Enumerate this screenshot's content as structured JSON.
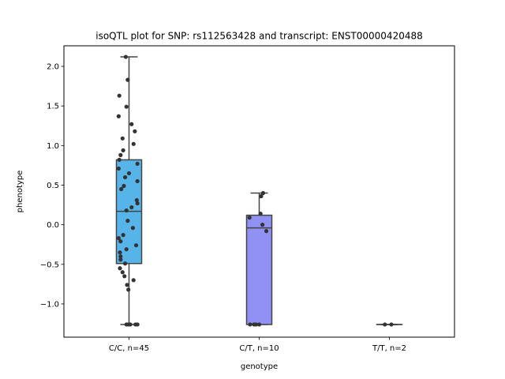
{
  "chart_data": {
    "type": "box",
    "title": "isoQTL plot for SNP: rs112563428 and transcript: ENST00000420488",
    "xlabel": "genotype",
    "ylabel": "phenotype",
    "ylim": [
      -1.42,
      2.26
    ],
    "yticks": [
      -1.0,
      -0.5,
      0.0,
      0.5,
      1.0,
      1.5,
      2.0
    ],
    "ytick_labels": [
      "−1.0",
      "−0.5",
      "0.0",
      "0.5",
      "1.0",
      "1.5",
      "2.0"
    ],
    "grid": false,
    "categories": [
      "C/C, n=45",
      "C/T, n=10",
      "T/T, n=2"
    ],
    "box_colors": [
      "#56b4e9",
      "#9191f4",
      "#b9a9f3"
    ],
    "point_color": "#333333",
    "boxes": [
      {
        "category": "C/C, n=45",
        "whisker_low": -1.26,
        "q1": -0.49,
        "median": 0.17,
        "q3": 0.82,
        "whisker_high": 2.12
      },
      {
        "category": "C/T, n=10",
        "whisker_low": -1.26,
        "q1": -1.26,
        "median": -0.04,
        "q3": 0.12,
        "whisker_high": 0.4
      },
      {
        "category": "T/T, n=2",
        "whisker_low": -1.26,
        "q1": -1.26,
        "median": -1.26,
        "q3": -1.26,
        "whisker_high": -1.26
      }
    ],
    "points": [
      [
        {
          "x": -0.05,
          "y": 2.12
        },
        {
          "x": -0.02,
          "y": 1.83
        },
        {
          "x": -0.15,
          "y": 1.63
        },
        {
          "x": -0.04,
          "y": 1.49
        },
        {
          "x": -0.16,
          "y": 1.37
        },
        {
          "x": 0.04,
          "y": 1.27
        },
        {
          "x": 0.09,
          "y": 1.18
        },
        {
          "x": -0.1,
          "y": 1.09
        },
        {
          "x": 0.07,
          "y": 1.02
        },
        {
          "x": -0.09,
          "y": 0.94
        },
        {
          "x": -0.13,
          "y": 0.88
        },
        {
          "x": -0.15,
          "y": 0.82
        },
        {
          "x": 0.13,
          "y": 0.77
        },
        {
          "x": -0.16,
          "y": 0.71
        },
        {
          "x": 0.0,
          "y": 0.65
        },
        {
          "x": -0.06,
          "y": 0.6
        },
        {
          "x": 0.13,
          "y": 0.55
        },
        {
          "x": -0.08,
          "y": 0.49
        },
        {
          "x": -0.12,
          "y": 0.45
        },
        {
          "x": 0.12,
          "y": 0.31
        },
        {
          "x": 0.13,
          "y": 0.27
        },
        {
          "x": 0.04,
          "y": 0.22
        },
        {
          "x": -0.04,
          "y": 0.18
        },
        {
          "x": -0.02,
          "y": 0.05
        },
        {
          "x": 0.06,
          "y": -0.04
        },
        {
          "x": -0.09,
          "y": -0.13
        },
        {
          "x": -0.16,
          "y": -0.17
        },
        {
          "x": -0.13,
          "y": -0.21
        },
        {
          "x": 0.11,
          "y": -0.26
        },
        {
          "x": -0.04,
          "y": -0.31
        },
        {
          "x": -0.14,
          "y": -0.35
        },
        {
          "x": -0.13,
          "y": -0.4
        },
        {
          "x": -0.13,
          "y": -0.44
        },
        {
          "x": -0.06,
          "y": -0.49
        },
        {
          "x": -0.14,
          "y": -0.55
        },
        {
          "x": -0.1,
          "y": -0.6
        },
        {
          "x": -0.07,
          "y": -0.65
        },
        {
          "x": 0.07,
          "y": -0.7
        },
        {
          "x": -0.03,
          "y": -0.76
        },
        {
          "x": -0.01,
          "y": -0.82
        },
        {
          "x": -0.04,
          "y": -1.26
        },
        {
          "x": -0.01,
          "y": -1.26
        },
        {
          "x": 0.02,
          "y": -1.26
        },
        {
          "x": 0.1,
          "y": -1.26
        },
        {
          "x": 0.13,
          "y": -1.26
        }
      ],
      [
        {
          "x": 0.06,
          "y": 0.4
        },
        {
          "x": 0.03,
          "y": 0.36
        },
        {
          "x": 0.02,
          "y": 0.14
        },
        {
          "x": -0.15,
          "y": 0.09
        },
        {
          "x": 0.05,
          "y": 0.0
        },
        {
          "x": 0.11,
          "y": -0.08
        },
        {
          "x": -0.14,
          "y": -1.26
        },
        {
          "x": -0.08,
          "y": -1.26
        },
        {
          "x": -0.05,
          "y": -1.26
        },
        {
          "x": 0.0,
          "y": -1.26
        }
      ],
      [
        {
          "x": -0.07,
          "y": -1.26
        },
        {
          "x": 0.03,
          "y": -1.26
        }
      ]
    ]
  }
}
